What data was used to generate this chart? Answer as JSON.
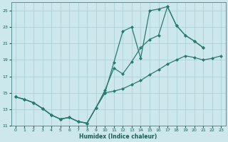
{
  "xlabel": "Humidex (Indice chaleur)",
  "bg_color": "#cce8ec",
  "grid_color": "#aaccd4",
  "line_color": "#2a7a70",
  "xlim": [
    -0.5,
    23.5
  ],
  "ylim": [
    11,
    26
  ],
  "yticks": [
    11,
    13,
    15,
    17,
    19,
    21,
    23,
    25
  ],
  "xticks": [
    0,
    1,
    2,
    3,
    4,
    5,
    6,
    7,
    8,
    9,
    10,
    11,
    12,
    13,
    14,
    15,
    16,
    17,
    18,
    19,
    20,
    21,
    22,
    23
  ],
  "line1_x": [
    0,
    1,
    2,
    3,
    4,
    5,
    6,
    7,
    8,
    9,
    10,
    11,
    12,
    13,
    14,
    15,
    16,
    17,
    18,
    19,
    20,
    21,
    22,
    23
  ],
  "line1_y": [
    14.5,
    14.2,
    13.8,
    13.1,
    12.3,
    11.8,
    12.0,
    11.5,
    11.3,
    13.2,
    15.0,
    15.2,
    15.5,
    16.0,
    16.5,
    17.2,
    17.8,
    18.5,
    19.0,
    19.5,
    19.3,
    19.0,
    19.2,
    19.5
  ],
  "line2_x": [
    0,
    1,
    2,
    3,
    4,
    5,
    6,
    7,
    8,
    9,
    10,
    11,
    12,
    13,
    14,
    15,
    16,
    17,
    18,
    19,
    20,
    21
  ],
  "line2_y": [
    14.5,
    14.2,
    13.8,
    13.1,
    12.3,
    11.8,
    12.0,
    11.5,
    11.3,
    13.2,
    15.0,
    18.7,
    22.5,
    23.0,
    19.2,
    25.0,
    25.2,
    25.5,
    23.2,
    22.0,
    21.3,
    20.5
  ],
  "line3_x": [
    0,
    1,
    2,
    3,
    4,
    5,
    6,
    7,
    8,
    9,
    10,
    11,
    12,
    13,
    14,
    15,
    16,
    17,
    18,
    19,
    20,
    21
  ],
  "line3_y": [
    14.5,
    14.2,
    13.8,
    13.1,
    12.3,
    11.8,
    12.0,
    11.5,
    11.3,
    13.2,
    15.3,
    18.0,
    17.3,
    18.8,
    20.5,
    21.5,
    22.0,
    25.5,
    23.2,
    22.0,
    21.3,
    20.5
  ]
}
